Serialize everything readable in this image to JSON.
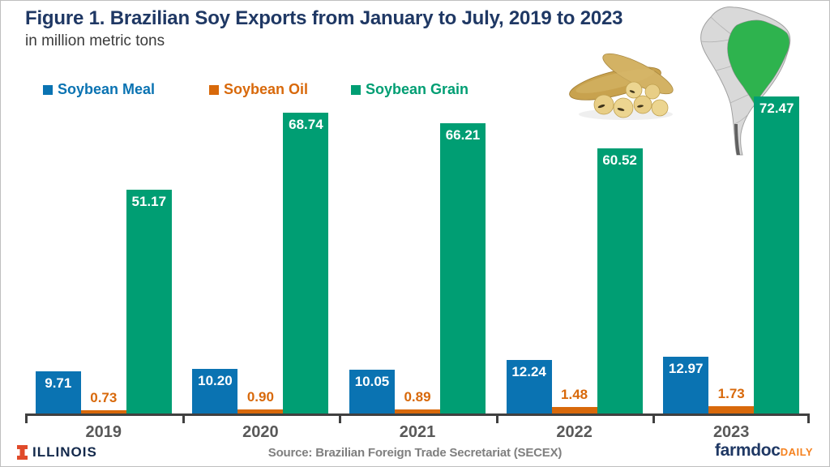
{
  "header": {
    "title": "Figure 1. Brazilian Soy Exports from January to July, 2019 to 2023",
    "subtitle": "in million metric tons"
  },
  "chart_data": {
    "type": "bar",
    "title": "Figure 1. Brazilian Soy Exports from January to July, 2019 to 2023",
    "xlabel": "",
    "ylabel": "million metric tons",
    "ylim": [
      0,
      80
    ],
    "grid": false,
    "legend_position": "top-left",
    "categories": [
      "2019",
      "2020",
      "2021",
      "2022",
      "2023"
    ],
    "series": [
      {
        "name": "Soybean Meal",
        "color": "#0a73b2",
        "values": [
          9.71,
          10.2,
          10.05,
          12.24,
          12.97
        ],
        "labels": [
          "9.71",
          "10.20",
          "10.05",
          "12.24",
          "12.97"
        ],
        "label_position": "inside-top",
        "label_color": "#ffffff"
      },
      {
        "name": "Soybean Oil",
        "color": "#d8690b",
        "values": [
          0.73,
          0.9,
          0.89,
          1.48,
          1.73
        ],
        "labels": [
          "0.73",
          "0.90",
          "0.89",
          "1.48",
          "1.73"
        ],
        "label_position": "above",
        "label_color": "#d8690b"
      },
      {
        "name": "Soybean Grain",
        "color": "#009e73",
        "values": [
          51.17,
          68.74,
          66.21,
          60.52,
          72.47
        ],
        "labels": [
          "51.17",
          "68.74",
          "66.21",
          "60.52",
          "72.47"
        ],
        "label_position": "inside-top",
        "label_color": "#ffffff"
      }
    ]
  },
  "footer": {
    "illinois": "ILLINOIS",
    "source": "Source: Brazilian Foreign Trade Secretariat (SECEX)",
    "farmdoc": "farmdoc",
    "daily": "DAILY"
  },
  "graphics": {
    "map": {
      "name": "south-america-map-brazil-highlighted",
      "land_color": "#d9d9d9",
      "border_color": "#a0a0a0",
      "brazil_color": "#2eb34e"
    },
    "soybeans": {
      "name": "soybean-pods-illustration",
      "pod_color": "#c8a24e",
      "bean_color": "#e8ce86"
    }
  },
  "colors": {
    "title": "#1f3864",
    "subtitle": "#3b3b3b",
    "axis": "#404040",
    "cat-label": "#595959",
    "source": "#7f7f7f",
    "ill-navy": "#13294b",
    "ill-orange": "#e04a2a",
    "fd-navy": "#1f3864",
    "fd-orange": "#f58220"
  }
}
